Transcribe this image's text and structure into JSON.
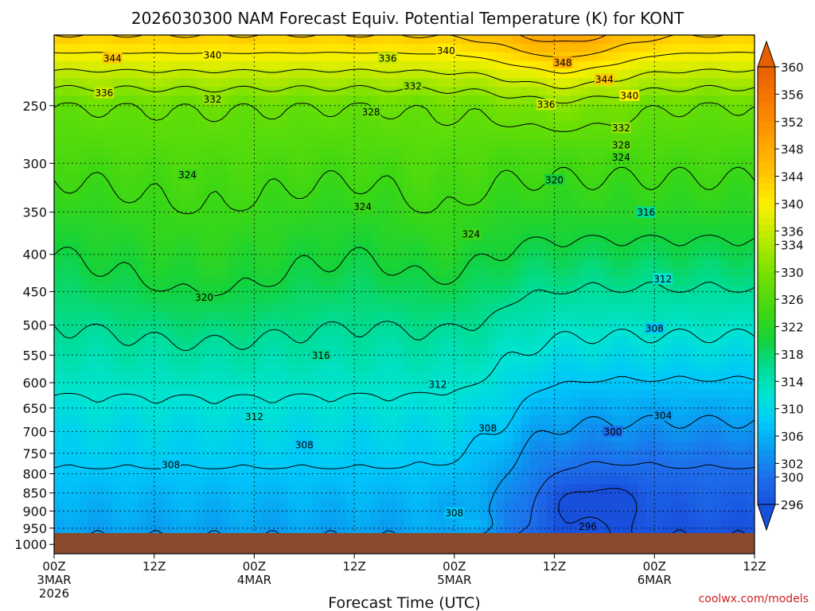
{
  "chart_data": {
    "type": "heatmap",
    "title": "2026030300 NAM Forecast Equiv. Potential Temperature (K) for KONT",
    "xlabel": "Forecast Time (UTC)",
    "ylabel": "",
    "x_ticks": [
      {
        "l1": "00Z",
        "l2": "3MAR",
        "l3": "2026",
        "hour": 0
      },
      {
        "l1": "12Z",
        "l2": "",
        "l3": "",
        "hour": 12
      },
      {
        "l1": "00Z",
        "l2": "4MAR",
        "l3": "",
        "hour": 24
      },
      {
        "l1": "12Z",
        "l2": "",
        "l3": "",
        "hour": 36
      },
      {
        "l1": "00Z",
        "l2": "5MAR",
        "l3": "",
        "hour": 48
      },
      {
        "l1": "12Z",
        "l2": "",
        "l3": "",
        "hour": 60
      },
      {
        "l1": "00Z",
        "l2": "6MAR",
        "l3": "",
        "hour": 72
      },
      {
        "l1": "12Z",
        "l2": "",
        "l3": "",
        "hour": 84
      }
    ],
    "x_range_hours": [
      0,
      84
    ],
    "pressure_levels": [
      250,
      300,
      350,
      400,
      450,
      500,
      550,
      600,
      650,
      700,
      750,
      800,
      850,
      900,
      950,
      1000
    ],
    "y_range_hpa": [
      200,
      1030
    ],
    "ground_level_hpa": 965,
    "colorbar_levels": [
      296,
      300,
      302,
      304,
      306,
      308,
      310,
      312,
      314,
      316,
      318,
      320,
      322,
      324,
      326,
      328,
      330,
      332,
      334,
      336,
      338,
      340,
      342,
      344,
      346,
      348,
      350,
      352,
      354,
      356,
      358,
      360
    ],
    "colorbar_labels": [
      "360",
      "356",
      "352",
      "348",
      "344",
      "340",
      "336",
      "334",
      "330",
      "326",
      "322",
      "318",
      "314",
      "310",
      "306",
      "302",
      "300",
      "296"
    ],
    "colorbar_label_values": [
      360,
      356,
      352,
      348,
      344,
      340,
      336,
      334,
      330,
      326,
      322,
      318,
      314,
      310,
      306,
      302,
      300,
      296
    ],
    "contour_labels": [
      {
        "text": "344",
        "hour": 7,
        "p": 215
      },
      {
        "text": "340",
        "hour": 19,
        "p": 213
      },
      {
        "text": "336",
        "hour": 40,
        "p": 215
      },
      {
        "text": "340",
        "hour": 47,
        "p": 210
      },
      {
        "text": "348",
        "hour": 61,
        "p": 218
      },
      {
        "text": "344",
        "hour": 66,
        "p": 230
      },
      {
        "text": "336",
        "hour": 6,
        "p": 240
      },
      {
        "text": "332",
        "hour": 19,
        "p": 245
      },
      {
        "text": "332",
        "hour": 43,
        "p": 235
      },
      {
        "text": "340",
        "hour": 69,
        "p": 242
      },
      {
        "text": "336",
        "hour": 59,
        "p": 249
      },
      {
        "text": "328",
        "hour": 38,
        "p": 255
      },
      {
        "text": "332",
        "hour": 68,
        "p": 268
      },
      {
        "text": "328",
        "hour": 68,
        "p": 283
      },
      {
        "text": "324",
        "hour": 68,
        "p": 294
      },
      {
        "text": "324",
        "hour": 16,
        "p": 311
      },
      {
        "text": "320",
        "hour": 60,
        "p": 316
      },
      {
        "text": "324",
        "hour": 37,
        "p": 344
      },
      {
        "text": "316",
        "hour": 71,
        "p": 350
      },
      {
        "text": "324",
        "hour": 50,
        "p": 375
      },
      {
        "text": "320",
        "hour": 18,
        "p": 458
      },
      {
        "text": "312",
        "hour": 73,
        "p": 432
      },
      {
        "text": "308",
        "hour": 72,
        "p": 505
      },
      {
        "text": "316",
        "hour": 32,
        "p": 550
      },
      {
        "text": "312",
        "hour": 46,
        "p": 603
      },
      {
        "text": "304",
        "hour": 73,
        "p": 665
      },
      {
        "text": "312",
        "hour": 24,
        "p": 668
      },
      {
        "text": "308",
        "hour": 52,
        "p": 692
      },
      {
        "text": "300",
        "hour": 67,
        "p": 700
      },
      {
        "text": "308",
        "hour": 30,
        "p": 730
      },
      {
        "text": "308",
        "hour": 14,
        "p": 777
      },
      {
        "text": "308",
        "hour": 48,
        "p": 905
      },
      {
        "text": "296",
        "hour": 64,
        "p": 945
      }
    ],
    "contour_interval_K": 2
  },
  "credit": "coolwx.com/models",
  "colors": {
    "ground": "#8b4a2b",
    "line": "#000000",
    "credit": "#cc2222"
  }
}
